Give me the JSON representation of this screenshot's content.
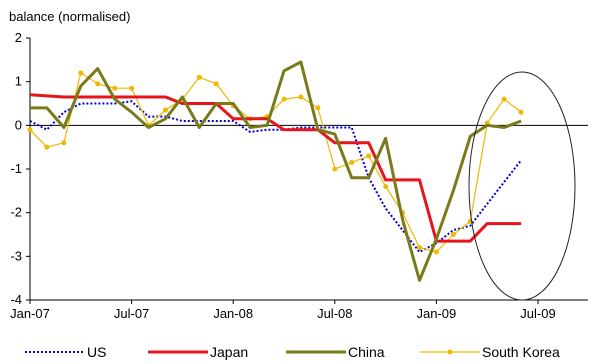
{
  "chart_data": {
    "type": "line",
    "ylabel": "balance (normalised)",
    "ylim": [
      -4,
      2
    ],
    "yticks": [
      2,
      1,
      0,
      -1,
      -2,
      -3,
      -4
    ],
    "xticks": [
      "Jan-07",
      "Jul-07",
      "Jan-08",
      "Jul-08",
      "Jan-09",
      "Jul-09"
    ],
    "x_range": [
      "2007-01",
      "2009-07"
    ],
    "grid": false,
    "legend_position": "bottom",
    "annotation": "ellipse highlighting Feb-09 to Jul-09",
    "series": [
      {
        "name": "US",
        "color": "#0000cc",
        "style": "dotted",
        "x": [
          "2007-01",
          "2007-02",
          "2007-03",
          "2007-04",
          "2007-05",
          "2007-06",
          "2007-07",
          "2007-08",
          "2007-09",
          "2007-10",
          "2007-11",
          "2007-12",
          "2008-01",
          "2008-02",
          "2008-03",
          "2008-04",
          "2008-05",
          "2008-06",
          "2008-07",
          "2008-08",
          "2008-09",
          "2008-10",
          "2008-11",
          "2008-12",
          "2009-01",
          "2009-02",
          "2009-03",
          "2009-04",
          "2009-05",
          "2009-06"
        ],
        "values": [
          0.1,
          -0.1,
          0.3,
          0.5,
          0.5,
          0.5,
          0.55,
          0.2,
          0.2,
          0.1,
          0.1,
          0.1,
          0.1,
          -0.15,
          -0.1,
          -0.1,
          -0.05,
          -0.05,
          -0.05,
          -0.05,
          -1.2,
          -1.9,
          -2.4,
          -2.9,
          -2.7,
          -2.4,
          -2.3,
          -1.8,
          -1.3,
          -0.8
        ]
      },
      {
        "name": "Japan",
        "color": "#e8141b",
        "style": "solid",
        "x": [
          "2007-01",
          "2007-03",
          "2007-04",
          "2007-06",
          "2007-07",
          "2007-09",
          "2007-10",
          "2007-12",
          "2008-01",
          "2008-03",
          "2008-04",
          "2008-06",
          "2008-07",
          "2008-09",
          "2008-10",
          "2008-12",
          "2009-01",
          "2009-03",
          "2009-04",
          "2009-06"
        ],
        "values": [
          0.7,
          0.65,
          0.65,
          0.65,
          0.65,
          0.65,
          0.5,
          0.5,
          0.15,
          0.15,
          -0.1,
          -0.1,
          -0.4,
          -0.4,
          -1.25,
          -1.25,
          -2.65,
          -2.65,
          -2.25,
          -2.25
        ]
      },
      {
        "name": "China",
        "color": "#7a7a1a",
        "style": "solid",
        "x": [
          "2007-01",
          "2007-02",
          "2007-03",
          "2007-04",
          "2007-05",
          "2007-06",
          "2007-07",
          "2007-08",
          "2007-09",
          "2007-10",
          "2007-11",
          "2007-12",
          "2008-01",
          "2008-02",
          "2008-03",
          "2008-04",
          "2008-05",
          "2008-06",
          "2008-07",
          "2008-08",
          "2008-09",
          "2008-10",
          "2008-11",
          "2008-12",
          "2009-01",
          "2009-02",
          "2009-03",
          "2009-04",
          "2009-05",
          "2009-06"
        ],
        "values": [
          0.4,
          0.4,
          -0.05,
          0.9,
          1.3,
          0.6,
          0.3,
          -0.05,
          0.15,
          0.65,
          -0.05,
          0.5,
          0.5,
          -0.05,
          0.0,
          1.25,
          1.45,
          -0.1,
          -0.2,
          -1.2,
          -1.2,
          -0.3,
          -2.15,
          -3.55,
          -2.6,
          -1.5,
          -0.25,
          0.0,
          -0.05,
          0.1
        ]
      },
      {
        "name": "South Korea",
        "color": "#f0b800",
        "style": "solid-markers",
        "x": [
          "2007-01",
          "2007-02",
          "2007-03",
          "2007-04",
          "2007-05",
          "2007-06",
          "2007-07",
          "2007-08",
          "2007-09",
          "2007-10",
          "2007-11",
          "2007-12",
          "2008-01",
          "2008-02",
          "2008-03",
          "2008-04",
          "2008-05",
          "2008-06",
          "2008-07",
          "2008-08",
          "2008-09",
          "2008-10",
          "2008-11",
          "2008-12",
          "2009-01",
          "2009-02",
          "2009-03",
          "2009-04",
          "2009-05",
          "2009-06"
        ],
        "values": [
          -0.1,
          -0.5,
          -0.4,
          1.2,
          0.95,
          0.85,
          0.85,
          0.0,
          0.35,
          0.6,
          1.1,
          0.95,
          0.45,
          0.15,
          0.2,
          0.6,
          0.65,
          0.4,
          -1.0,
          -0.85,
          -0.7,
          -1.4,
          -2.0,
          -2.8,
          -2.9,
          -2.5,
          -2.2,
          0.05,
          0.6,
          0.3
        ]
      }
    ]
  }
}
